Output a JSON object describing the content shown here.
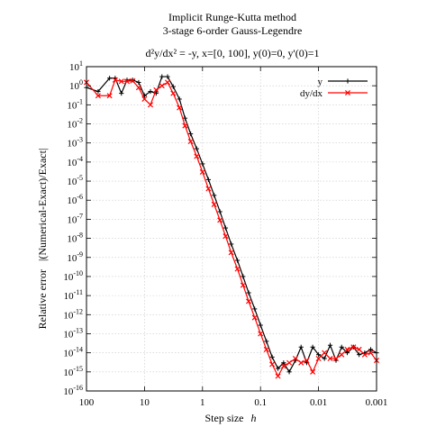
{
  "chart_data": {
    "type": "line",
    "title_line1": "Implicit Runge-Kutta method",
    "title_line2": "3-stage 6-order Gauss-Legendre",
    "subtitle": "d²y/dx² = -y, x=[0, 100], y(0)=0, y'(0)=1",
    "xlabel": "Step size",
    "xlabel_symbol": "h",
    "ylabel": "Relative error   |(Numerical-Exact)/Exact|",
    "x_scale": "log",
    "y_scale": "log",
    "x_reversed": true,
    "xlim": [
      100,
      0.001
    ],
    "ylim": [
      1e-16,
      10
    ],
    "grid": true,
    "legend_position": "top-right",
    "x_ticks": [
      {
        "v": 100,
        "label": "100"
      },
      {
        "v": 10,
        "label": "10"
      },
      {
        "v": 1,
        "label": "1"
      },
      {
        "v": 0.1,
        "label": "0.1"
      },
      {
        "v": 0.01,
        "label": "0.01"
      },
      {
        "v": 0.001,
        "label": "0.001"
      }
    ],
    "y_ticks": [
      {
        "e": 1,
        "base": "10",
        "exp": "1"
      },
      {
        "e": 0,
        "base": "10",
        "exp": "0"
      },
      {
        "e": -1,
        "base": "10",
        "exp": "-1"
      },
      {
        "e": -2,
        "base": "10",
        "exp": "-2"
      },
      {
        "e": -3,
        "base": "10",
        "exp": "-3"
      },
      {
        "e": -4,
        "base": "10",
        "exp": "-4"
      },
      {
        "e": -5,
        "base": "10",
        "exp": "-5"
      },
      {
        "e": -6,
        "base": "10",
        "exp": "-6"
      },
      {
        "e": -7,
        "base": "10",
        "exp": "-7"
      },
      {
        "e": -8,
        "base": "10",
        "exp": "-8"
      },
      {
        "e": -9,
        "base": "10",
        "exp": "-9"
      },
      {
        "e": -10,
        "base": "10",
        "exp": "-10"
      },
      {
        "e": -11,
        "base": "10",
        "exp": "-11"
      },
      {
        "e": -12,
        "base": "10",
        "exp": "-12"
      },
      {
        "e": -13,
        "base": "10",
        "exp": "-13"
      },
      {
        "e": -14,
        "base": "10",
        "exp": "-14"
      },
      {
        "e": -15,
        "base": "10",
        "exp": "-15"
      },
      {
        "e": -16,
        "base": "10",
        "exp": "-16"
      }
    ],
    "series": [
      {
        "name": "y",
        "color": "#000000",
        "marker": "plus",
        "x": [
          100,
          63,
          40,
          32,
          25,
          20,
          16,
          12.6,
          10,
          7.9,
          6.3,
          5,
          4,
          3.2,
          2.5,
          2,
          1.6,
          1.26,
          1,
          0.79,
          0.63,
          0.5,
          0.4,
          0.32,
          0.25,
          0.2,
          0.16,
          0.126,
          0.1,
          0.079,
          0.063,
          0.05,
          0.04,
          0.032,
          0.025,
          0.02,
          0.016,
          0.0126,
          0.01,
          0.0079,
          0.0063,
          0.005,
          0.004,
          0.0032,
          0.0025,
          0.002,
          0.0016,
          0.00126,
          0.001
        ],
        "y": [
          0.8,
          0.5,
          2.5,
          2.5,
          0.4,
          2.0,
          2.0,
          1.5,
          0.3,
          0.5,
          0.4,
          3.0,
          3.0,
          0.9,
          0.2,
          0.02,
          0.003,
          0.0005,
          8e-05,
          1.2e-05,
          1.8e-06,
          2.5e-07,
          3.5e-08,
          5e-09,
          7e-10,
          1e-10,
          1.4e-11,
          2e-12,
          2.8e-13,
          4e-14,
          6e-15,
          1.5e-15,
          3e-15,
          1e-15,
          4e-15,
          2e-14,
          3e-15,
          2e-14,
          8e-15,
          5e-15,
          2.5e-14,
          4e-15,
          2e-14,
          1e-14,
          2e-14,
          8e-15,
          1e-14,
          1.5e-14,
          1e-14
        ]
      },
      {
        "name": "dy/dx",
        "color": "#ff0000",
        "marker": "cross",
        "x": [
          100,
          63,
          40,
          32,
          25,
          20,
          16,
          12.6,
          10,
          7.9,
          6.3,
          5,
          4,
          3.2,
          2.5,
          2,
          1.6,
          1.26,
          1,
          0.79,
          0.63,
          0.5,
          0.4,
          0.32,
          0.25,
          0.2,
          0.16,
          0.126,
          0.1,
          0.079,
          0.063,
          0.05,
          0.04,
          0.032,
          0.025,
          0.02,
          0.016,
          0.0126,
          0.01,
          0.0079,
          0.0063,
          0.005,
          0.004,
          0.0032,
          0.0025,
          0.002,
          0.0016,
          0.00126,
          0.001
        ],
        "y": [
          1.5,
          0.3,
          0.3,
          2.0,
          1.7,
          1.7,
          1.8,
          0.8,
          0.2,
          0.1,
          0.6,
          1.0,
          1.5,
          0.4,
          0.07,
          0.008,
          0.0012,
          0.0002,
          3e-05,
          4e-06,
          6e-07,
          9e-08,
          1.3e-08,
          1.8e-09,
          2.5e-10,
          3.5e-11,
          5e-12,
          7e-13,
          1e-13,
          1.5e-14,
          2.5e-15,
          6e-16,
          2e-15,
          3e-15,
          5e-15,
          3e-15,
          4e-15,
          1e-15,
          5e-15,
          1e-14,
          5e-15,
          5e-15,
          8e-15,
          1.5e-14,
          2e-14,
          1.5e-14,
          8e-15,
          1e-14,
          4e-15
        ]
      }
    ]
  }
}
